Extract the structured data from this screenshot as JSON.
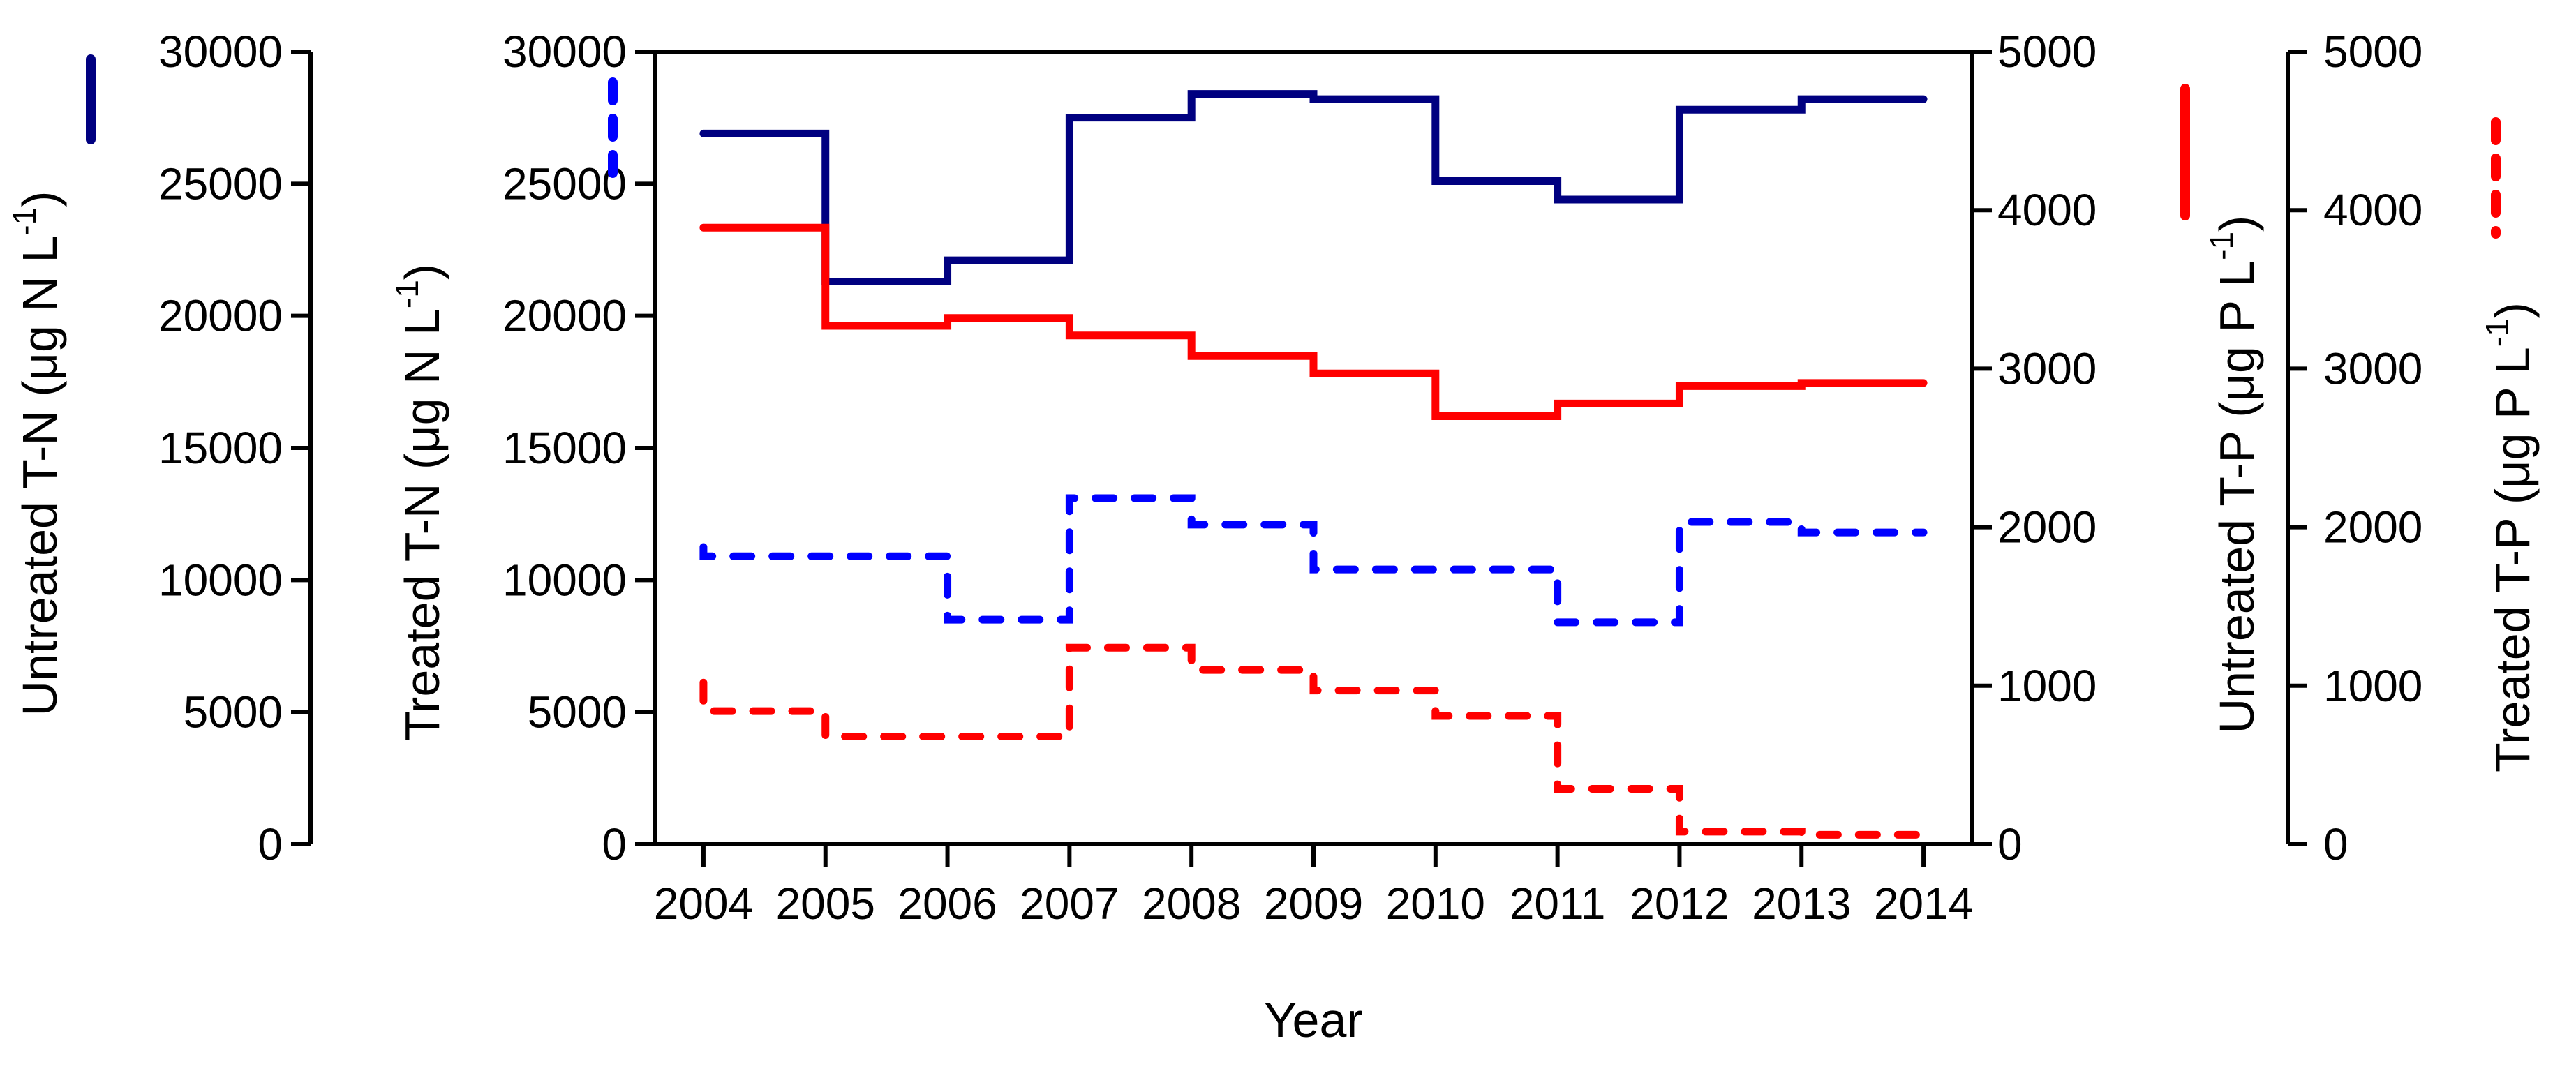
{
  "chart_data": {
    "type": "line",
    "line_style": "step",
    "background": "#ffffff",
    "years": [
      2004,
      2005,
      2006,
      2007,
      2008,
      2009,
      2010,
      2011,
      2012,
      2013,
      2014
    ],
    "x": {
      "label": "Year",
      "ticks": [
        2004,
        2005,
        2006,
        2007,
        2008,
        2009,
        2010,
        2011,
        2012,
        2013,
        2014
      ],
      "domain": [
        2003.6,
        2014.4
      ]
    },
    "y_axes": [
      {
        "id": "untreated_tn",
        "side": "left",
        "slot": "outer",
        "label_main": "Untreated T-N (μg N L",
        "label_sup": "-1",
        "label_end": ")",
        "min": 0,
        "max": 30000,
        "ticks": [
          0,
          5000,
          10000,
          15000,
          20000,
          25000,
          30000
        ],
        "swatch": {
          "color": "#000080",
          "dashed": false
        }
      },
      {
        "id": "treated_tn",
        "side": "left",
        "slot": "inner",
        "label_main": "Treated T-N (μg N L",
        "label_sup": "-1",
        "label_end": ")",
        "min": 0,
        "max": 30000,
        "ticks": [
          0,
          5000,
          10000,
          15000,
          20000,
          25000,
          30000
        ],
        "swatch": {
          "color": "#0000FF",
          "dashed": true
        }
      },
      {
        "id": "untreated_tp",
        "side": "right",
        "slot": "inner",
        "label_main": "Untreated T-P (μg P L",
        "label_sup": "-1",
        "label_end": ")",
        "min": 0,
        "max": 5000,
        "ticks": [
          0,
          1000,
          2000,
          3000,
          4000,
          5000
        ],
        "swatch": {
          "color": "#FF0000",
          "dashed": false
        }
      },
      {
        "id": "treated_tp",
        "side": "right",
        "slot": "outer",
        "label_main": "Treated T-P (μg P L",
        "label_sup": "-1",
        "label_end": ")",
        "min": 0,
        "max": 5000,
        "ticks": [
          0,
          1000,
          2000,
          3000,
          4000,
          5000
        ],
        "swatch": {
          "color": "#FF0000",
          "dashed": true
        }
      }
    ],
    "series": [
      {
        "name": "Untreated T-N",
        "axis": "untreated_tn",
        "color": "#000080",
        "dashed": false,
        "values": [
          26900,
          21300,
          22100,
          27500,
          28400,
          28200,
          25100,
          24400,
          27800,
          28200,
          28200
        ]
      },
      {
        "name": "Treated T-N",
        "axis": "treated_tn",
        "color": "#0000FF",
        "dashed": true,
        "start_value": 11250,
        "values": [
          10900,
          10900,
          8500,
          13100,
          12100,
          10400,
          10400,
          8400,
          12200,
          11800,
          11800
        ]
      },
      {
        "name": "Untreated T-P",
        "axis": "untreated_tp",
        "color": "#FF0000",
        "dashed": false,
        "values": [
          3890,
          3270,
          3320,
          3210,
          3080,
          2970,
          2700,
          2780,
          2890,
          2910,
          2910
        ]
      },
      {
        "name": "Treated T-P",
        "axis": "treated_tp",
        "color": "#FF0000",
        "dashed": true,
        "start_value": 1020,
        "values": [
          840,
          680,
          680,
          1240,
          1100,
          970,
          810,
          350,
          80,
          60,
          60
        ]
      }
    ]
  }
}
